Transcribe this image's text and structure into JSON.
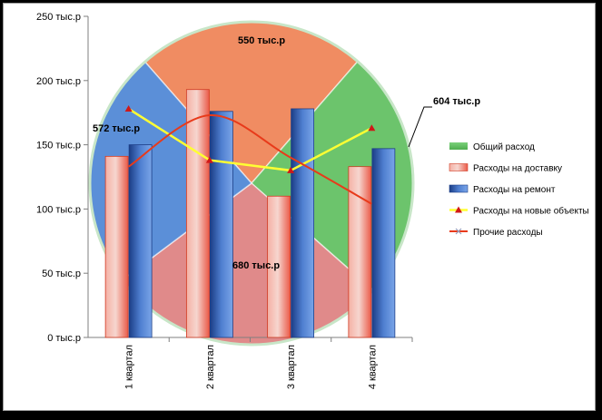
{
  "colors": {
    "pie_total": "#6cc46c",
    "pie_delivery": "#f08c62",
    "pie_repair": "#5b8fd8",
    "pie_new": "#e08a8a",
    "pie_other": "#e08a8a",
    "bar_delivery": "#f07a68",
    "bar_repair": "#4a78c8",
    "line_new": "#ffff33",
    "line_other": "#e83a1a",
    "marker_new": "#d01818"
  },
  "icons": {
    "marker_new": "triangle-marker",
    "marker_other": "x-marker"
  },
  "chart_data": [
    {
      "type": "bar",
      "categories": [
        "1 квартал",
        "2 квартал",
        "3 квартал",
        "4 квартал"
      ],
      "y_ticks": [
        "0 тыс.р",
        "50 тыс.р",
        "100 тыс.р",
        "150 тыс.р",
        "200 тыс.р",
        "250 тыс.р"
      ],
      "ylim": [
        0,
        250
      ],
      "grid": false,
      "legend_position": "right",
      "series": [
        {
          "name": "Расходы на доставку",
          "values": [
            141,
            193,
            110,
            133
          ]
        },
        {
          "name": "Расходы на ремонт",
          "values": [
            150,
            176,
            178,
            147
          ]
        }
      ]
    },
    {
      "type": "line",
      "categories": [
        "1 квартал",
        "2 квартал",
        "3 квартал",
        "4 квартал"
      ],
      "series": [
        {
          "name": "Расходы на новые объекты",
          "values": [
            178,
            138,
            130,
            163
          ]
        },
        {
          "name": "Прочие расходы",
          "values": [
            133,
            173,
            140,
            104
          ]
        }
      ]
    },
    {
      "type": "pie",
      "series_name": "Общий расход",
      "slices": [
        {
          "label": "550 тыс.р",
          "value": 550
        },
        {
          "label": "604 тыс.р",
          "value": 604
        },
        {
          "label": "680 тыс.р",
          "value": 680
        },
        {
          "label": "572 тыс.р",
          "value": 572
        }
      ]
    }
  ]
}
